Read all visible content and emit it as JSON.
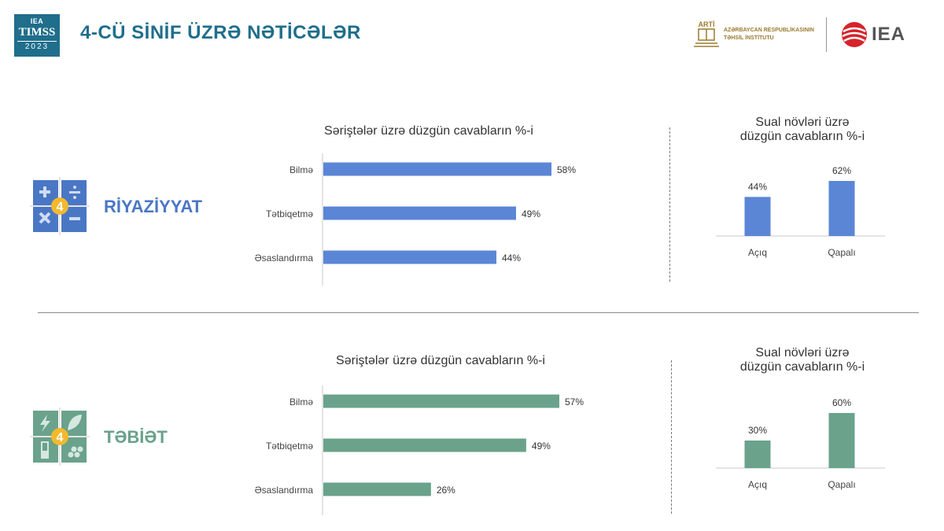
{
  "header": {
    "title": "4-CÜ SİNİF ÜZRƏ NƏTİCƏLƏR",
    "timss_logo": {
      "line1": "IEA",
      "line2": "TIMSS",
      "line3": "2023"
    },
    "arti_logo": {
      "abbr": "ARTİ",
      "line1": "AZƏRBAYCAN RESPUBLİKASININ",
      "line2": "TƏHSİL İNSTİTUTU"
    },
    "iea_logo": "IEA"
  },
  "subjects": [
    {
      "label": "RİYAZİYYAT",
      "badge": "4",
      "color": "#4a77c4"
    },
    {
      "label": "TƏBİƏT",
      "badge": "4",
      "color": "#6aa28b"
    }
  ],
  "chart_data": [
    {
      "type": "bar",
      "orientation": "horizontal",
      "title": "Səriştələr üzrə düzgün cavabların %-i",
      "categories": [
        "Bilmə",
        "Tətbiqetmə",
        "Əsaslandırma"
      ],
      "values": [
        58,
        49,
        44
      ],
      "value_labels": [
        "58%",
        "49%",
        "44%"
      ],
      "color": "#5b86d6",
      "xlim": [
        0,
        60
      ]
    },
    {
      "type": "bar",
      "title": "Sual növləri üzrə düzgün cavabların %-i",
      "title_lines": [
        "Sual növləri üzrə",
        "düzgün cavabların %-i"
      ],
      "categories": [
        "Açıq",
        "Qapalı"
      ],
      "values": [
        44,
        62
      ],
      "value_labels": [
        "44%",
        "62%"
      ],
      "color": "#5b86d6",
      "ylim": [
        0,
        62
      ]
    },
    {
      "type": "bar",
      "orientation": "horizontal",
      "title": "Səriştələr üzrə düzgün cavabların %-i",
      "categories": [
        "Bilmə",
        "Tətbiqetmə",
        "Əsaslandırma"
      ],
      "values": [
        57,
        49,
        26
      ],
      "value_labels": [
        "57%",
        "49%",
        "26%"
      ],
      "color": "#6aa28b",
      "xlim": [
        0,
        57
      ]
    },
    {
      "type": "bar",
      "title": "Sual növləri üzrə düzgün cavabların %-i",
      "title_lines": [
        "Sual növləri üzrə",
        "düzgün cavabların %-i"
      ],
      "categories": [
        "Açıq",
        "Qapalı"
      ],
      "values": [
        30,
        60
      ],
      "value_labels": [
        "30%",
        "60%"
      ],
      "color": "#6aa28b",
      "ylim": [
        0,
        60
      ]
    }
  ]
}
